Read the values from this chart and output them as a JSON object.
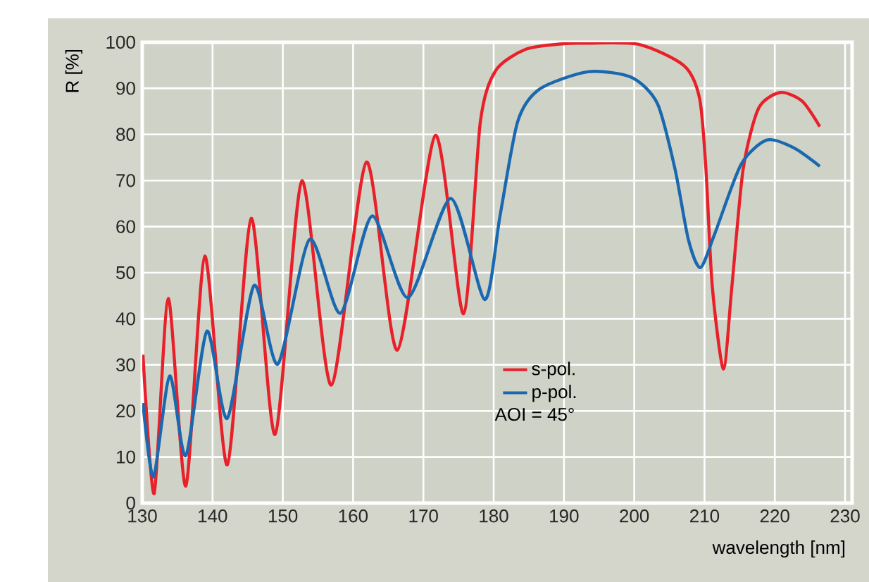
{
  "chart_data": {
    "type": "line",
    "xlabel": "wavelength [nm]",
    "ylabel": "R  [%]",
    "xlim": [
      130,
      231
    ],
    "xticks": [
      130,
      140,
      150,
      160,
      170,
      180,
      190,
      200,
      210,
      220,
      230
    ],
    "ylim": [
      0,
      100
    ],
    "yticks": [
      0,
      10,
      20,
      30,
      40,
      50,
      60,
      70,
      80,
      90,
      100
    ],
    "grid": true,
    "legend": "bottom",
    "marker": "none",
    "line_style": "solid",
    "annotations": [
      "AOI = 45°"
    ],
    "series": [
      {
        "name": "s-pol.",
        "color": "#e8202a",
        "x": [
          130.1,
          131.7,
          133.7,
          136.2,
          138.9,
          142.1,
          145.5,
          148.9,
          152.7,
          156.9,
          161.9,
          166.3,
          171.7,
          175.7,
          178.1,
          180.3,
          184.6,
          190,
          193.4,
          200.8,
          207.1,
          209.3,
          210.2,
          211.1,
          212.7,
          213.9,
          215.5,
          217.7,
          220.8,
          223.9,
          226.4
        ],
        "values": [
          32.2,
          2.1,
          44.4,
          3.7,
          53.6,
          8.3,
          61.8,
          14.9,
          69.9,
          25.6,
          74.0,
          33.2,
          79.8,
          41.1,
          82.7,
          93.9,
          98.5,
          99.7,
          99.8,
          99.5,
          94.9,
          87.8,
          72.5,
          47.1,
          29.1,
          47.1,
          72.5,
          85.7,
          89.1,
          87.2,
          81.7
        ]
      },
      {
        "name": "p-pol.",
        "color": "#1a68b0",
        "x": [
          130.1,
          131.6,
          133.9,
          136.2,
          139.2,
          142.1,
          145.9,
          149.3,
          153.8,
          158.2,
          162.7,
          167.8,
          173.9,
          178.7,
          180.9,
          183.4,
          186.5,
          193.4,
          199.6,
          203.3,
          205.8,
          207.7,
          209.4,
          211.4,
          215.2,
          218.9,
          222.7,
          226.4
        ],
        "values": [
          21.7,
          5.7,
          27.6,
          10.3,
          37.3,
          18.4,
          47.2,
          30.2,
          57.2,
          41.2,
          62.3,
          44.6,
          66.1,
          44.2,
          62.3,
          82.7,
          89.8,
          93.6,
          92.4,
          86.7,
          72.5,
          57.2,
          51.1,
          58.2,
          73.5,
          78.8,
          77.1,
          73.1
        ]
      }
    ]
  }
}
